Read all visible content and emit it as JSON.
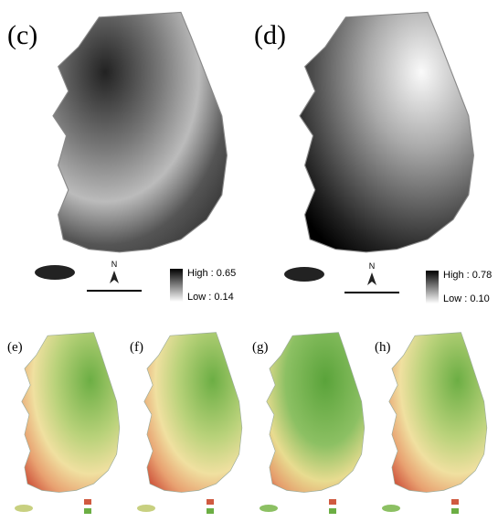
{
  "panels": [
    {
      "label": "(c)",
      "legend": {
        "high": "High : 0.65",
        "low": "Low : 0.14"
      },
      "north": "N"
    },
    {
      "label": "(d)",
      "legend": {
        "high": "High : 0.78",
        "low": "Low : 0.10"
      },
      "north": "N"
    },
    {
      "label": "(e)"
    },
    {
      "label": "(f)"
    },
    {
      "label": "(g)"
    },
    {
      "label": "(h)"
    }
  ]
}
